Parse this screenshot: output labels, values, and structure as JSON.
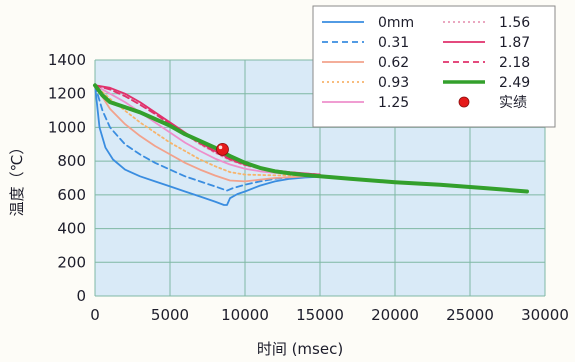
{
  "chart_data": {
    "type": "line",
    "title": "",
    "xlabel": "时间 (msec)",
    "ylabel": "温度（℃）",
    "xlim": [
      0,
      30000
    ],
    "ylim": [
      0,
      1400
    ],
    "xticks": [
      0,
      5000,
      10000,
      15000,
      20000,
      25000,
      30000
    ],
    "yticks": [
      0,
      200,
      400,
      600,
      800,
      1000,
      1200,
      1400
    ],
    "grid": true,
    "legend_position": "top-right",
    "colors": {
      "plot_bg": "#d9eaf7",
      "grid": "#7fb8a4",
      "legend_bg": "#ffffff"
    },
    "series": [
      {
        "name": "0mm",
        "color": "#3a8de0",
        "dash": "solid",
        "width": 1.8,
        "x": [
          0,
          300,
          700,
          1200,
          2000,
          3000,
          4000,
          5000,
          6000,
          7000,
          8000,
          8600,
          8800,
          9000,
          9500,
          10000,
          11000,
          12000,
          13000,
          14000,
          15000
        ],
        "y": [
          1250,
          1000,
          880,
          810,
          750,
          710,
          680,
          650,
          620,
          590,
          560,
          540,
          540,
          580,
          605,
          620,
          655,
          680,
          695,
          703,
          708
        ]
      },
      {
        "name": "0.31",
        "color": "#3a8de0",
        "dash": "dashed",
        "width": 1.8,
        "x": [
          0,
          500,
          1000,
          2000,
          3000,
          4000,
          5000,
          6000,
          7000,
          8000,
          8800,
          9200,
          10000,
          11000,
          12000,
          13000,
          14000,
          15000
        ],
        "y": [
          1250,
          1100,
          1000,
          900,
          840,
          790,
          750,
          710,
          680,
          650,
          625,
          640,
          660,
          680,
          695,
          703,
          708,
          710
        ]
      },
      {
        "name": "0.62",
        "color": "#f2a28c",
        "dash": "solid",
        "width": 1.8,
        "x": [
          0,
          1000,
          2000,
          3000,
          4000,
          5000,
          6000,
          7000,
          8000,
          9000,
          10000,
          11000,
          12000,
          13000,
          14000,
          15000
        ],
        "y": [
          1250,
          1110,
          1020,
          950,
          890,
          840,
          790,
          750,
          715,
          685,
          680,
          690,
          700,
          705,
          710,
          712
        ]
      },
      {
        "name": "0.93",
        "color": "#f7b46c",
        "dash": "dotted",
        "width": 1.8,
        "x": [
          0,
          1000,
          2000,
          3000,
          4000,
          5000,
          6000,
          7000,
          8000,
          9000,
          10000,
          11000,
          12000,
          13000,
          14000,
          15000
        ],
        "y": [
          1250,
          1170,
          1100,
          1030,
          970,
          910,
          860,
          810,
          770,
          735,
          720,
          718,
          716,
          715,
          714,
          713
        ]
      },
      {
        "name": "1.25",
        "color": "#ee8fcb",
        "dash": "solid",
        "width": 1.8,
        "x": [
          0,
          1000,
          2000,
          3000,
          4000,
          5000,
          6000,
          7000,
          8000,
          9000,
          10000,
          11000,
          12000,
          13000,
          14000,
          15000
        ],
        "y": [
          1250,
          1200,
          1150,
          1090,
          1030,
          970,
          910,
          860,
          815,
          780,
          755,
          740,
          730,
          725,
          720,
          716
        ]
      },
      {
        "name": "1.56",
        "color": "#e79bb8",
        "dash": "dotted",
        "width": 1.8,
        "x": [
          0,
          1000,
          2000,
          3000,
          4000,
          5000,
          6000,
          7000,
          8000,
          9000,
          10000,
          11000,
          12000,
          13000,
          14000,
          15000
        ],
        "y": [
          1250,
          1230,
          1190,
          1140,
          1080,
          1020,
          960,
          900,
          850,
          805,
          775,
          755,
          742,
          733,
          726,
          720
        ]
      },
      {
        "name": "1.87",
        "color": "#e0306b",
        "dash": "solid",
        "width": 1.8,
        "x": [
          0,
          1000,
          2000,
          3000,
          4000,
          5000,
          6000,
          7000,
          8000,
          9000,
          10000,
          11000,
          12000,
          13000,
          14000,
          15000
        ],
        "y": [
          1250,
          1235,
          1200,
          1150,
          1090,
          1030,
          970,
          910,
          860,
          815,
          780,
          760,
          745,
          735,
          727,
          720
        ]
      },
      {
        "name": "2.18",
        "color": "#e0306b",
        "dash": "dashed",
        "width": 1.8,
        "x": [
          0,
          1000,
          2000,
          3000,
          4000,
          5000,
          6000,
          7000,
          8000,
          9000,
          10000,
          11000,
          12000,
          13000,
          14000,
          15000
        ],
        "y": [
          1250,
          1225,
          1185,
          1135,
          1080,
          1020,
          960,
          905,
          855,
          810,
          778,
          758,
          744,
          734,
          726,
          720
        ]
      },
      {
        "name": "2.49",
        "color": "#33a02c",
        "dash": "solid",
        "width": 4,
        "x": [
          0,
          500,
          1000,
          2000,
          3000,
          4000,
          5000,
          6000,
          7000,
          8000,
          8500,
          9000,
          10000,
          11000,
          12000,
          13000,
          14000,
          15000,
          17000,
          20000,
          23000,
          26000,
          28800
        ],
        "y": [
          1250,
          1190,
          1150,
          1120,
          1090,
          1050,
          1010,
          960,
          920,
          880,
          855,
          830,
          790,
          760,
          740,
          727,
          718,
          710,
          695,
          675,
          660,
          640,
          620
        ]
      }
    ],
    "actual_data": {
      "name": "实绩",
      "color": "#e51a1a",
      "x": [
        8500
      ],
      "y": [
        870
      ]
    }
  }
}
